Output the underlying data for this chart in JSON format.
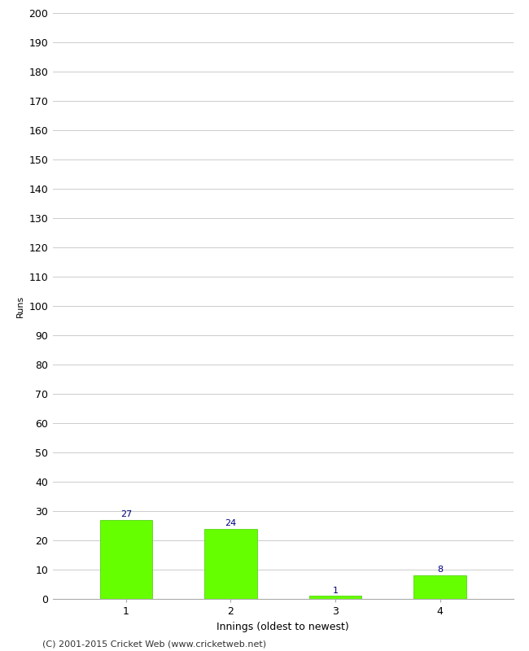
{
  "categories": [
    "1",
    "2",
    "3",
    "4"
  ],
  "values": [
    27,
    24,
    1,
    8
  ],
  "bar_color": "#66ff00",
  "bar_edge_color": "#44cc00",
  "label_color": "#000080",
  "ylabel": "Runs",
  "xlabel": "Innings (oldest to newest)",
  "ylim": [
    0,
    200
  ],
  "yticks": [
    0,
    10,
    20,
    30,
    40,
    50,
    60,
    70,
    80,
    90,
    100,
    110,
    120,
    130,
    140,
    150,
    160,
    170,
    180,
    190,
    200
  ],
  "footer": "(C) 2001-2015 Cricket Web (www.cricketweb.net)",
  "background_color": "#ffffff",
  "grid_color": "#cccccc",
  "bar_label_fontsize": 8,
  "footer_fontsize": 8,
  "tick_fontsize": 9,
  "ylabel_fontsize": 8,
  "xlabel_fontsize": 9
}
